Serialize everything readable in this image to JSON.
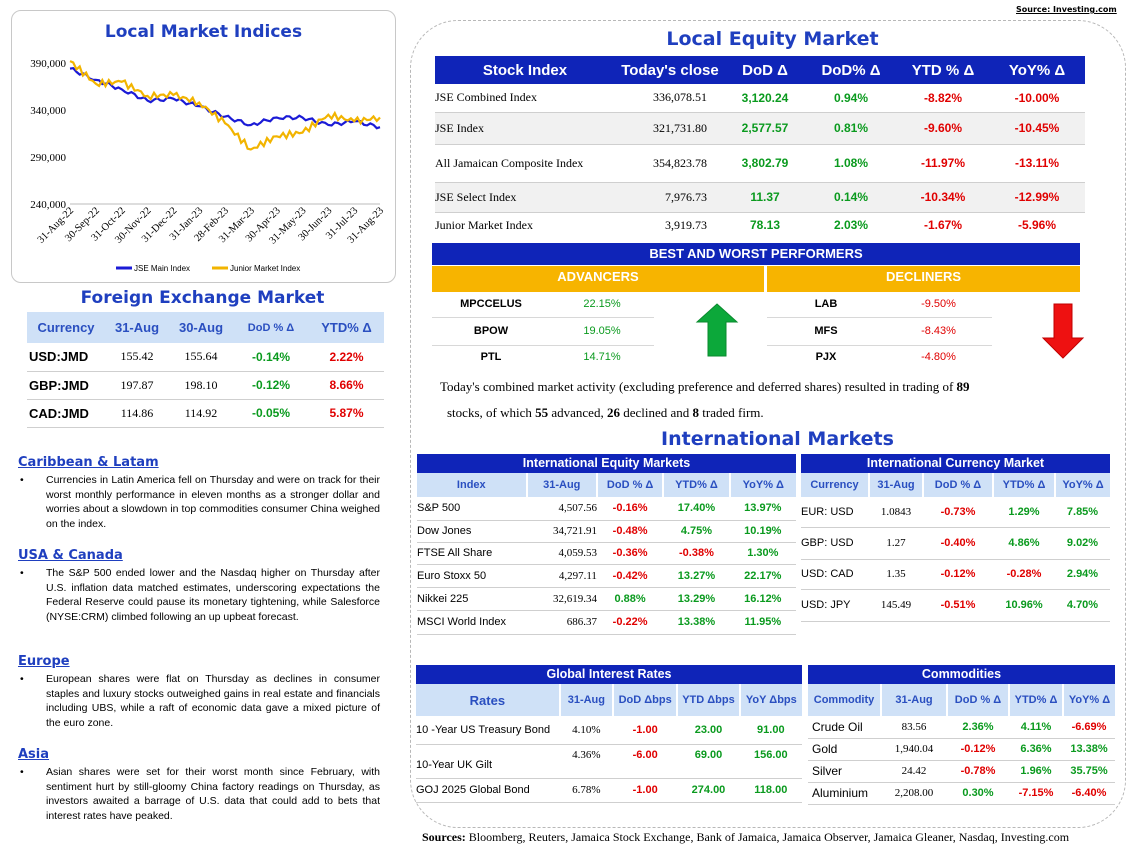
{
  "source_top": "Source: Investing.com",
  "sources_bottom_label": "Sources:",
  "sources_bottom_text": " Bloomberg, Reuters, Jamaica Stock Exchange, Bank of Jamaica, Jamaica Observer, Jamaica Gleaner, Nasdaq, Investing.com",
  "chart_data": {
    "type": "line",
    "title": "Local Market Indices",
    "x": [
      "31-Aug-22",
      "30-Sep-22",
      "31-Oct-22",
      "30-Nov-22",
      "31-Dec-22",
      "31-Jan-23",
      "28-Feb-23",
      "31-Mar-23",
      "30-Apr-23",
      "31-May-23",
      "30-Jun-23",
      "31-Jul-23",
      "31-Aug-23"
    ],
    "ylim": [
      240000,
      390000
    ],
    "yticks": [
      "390,000",
      "340,000",
      "290,000",
      "240,000"
    ],
    "ytick_values": [
      390000,
      340000,
      290000,
      240000
    ],
    "series": [
      {
        "name": "JSE Main Index",
        "color": "#1b1bd6",
        "values": [
          384000,
          372000,
          362000,
          350000,
          352000,
          344000,
          333000,
          324000,
          332000,
          332000,
          324000,
          328000,
          321731
        ]
      },
      {
        "name": "Junior Market Index",
        "color": "#f2b400",
        "values": [
          392000,
          368000,
          370000,
          355000,
          356000,
          348000,
          326000,
          298000,
          312000,
          316000,
          335000,
          328000,
          332000
        ]
      }
    ]
  },
  "fx": {
    "title": "Foreign Exchange Market",
    "headers": [
      "Currency",
      "31-Aug",
      "30-Aug",
      "DoD % Δ",
      "YTD% Δ"
    ],
    "rows": [
      {
        "cur": "USD:JMD",
        "a": "155.42",
        "b": "155.64",
        "dod": "-0.14%",
        "ytd": "2.22%"
      },
      {
        "cur": "GBP:JMD",
        "a": "197.87",
        "b": "198.10",
        "dod": "-0.12%",
        "ytd": "8.66%"
      },
      {
        "cur": "CAD:JMD",
        "a": "114.86",
        "b": "114.92",
        "dod": "-0.05%",
        "ytd": "5.87%"
      }
    ]
  },
  "news": [
    {
      "head": "Caribbean & Latam",
      "text": "Currencies in Latin America fell on Thursday and were on track for their worst monthly performance in eleven months as a stronger dollar and worries about a slowdown in top commodities consumer China weighed on the index."
    },
    {
      "head": "USA & Canada",
      "text": "The S&P 500 ended lower and the Nasdaq higher on Thursday after U.S. inflation data matched estimates, underscoring expectations the Federal Reserve could pause its monetary tightening, while Salesforce (NYSE:CRM) climbed following an up upbeat forecast."
    },
    {
      "head": "Europe",
      "text": "European shares were flat on Thursday as declines in consumer staples and luxury stocks outweighed gains in real estate and financials including UBS, while a raft of economic data gave a mixed picture of the euro zone."
    },
    {
      "head": "Asia",
      "text": "Asian shares were set for their worst month since February, with sentiment hurt by still-gloomy China factory readings on Thursday, as investors awaited a barrage of U.S. data that could add to bets that interest rates have peaked."
    }
  ],
  "equity": {
    "title": "Local Equity Market",
    "headers": [
      "Stock Index",
      "Today's close",
      "DoD  Δ",
      "DoD% Δ",
      "YTD % Δ",
      "YoY% Δ"
    ],
    "rows": [
      {
        "name": "JSE Combined Index",
        "close": "336,078.51",
        "dod": "3,120.24",
        "dodp": "0.94%",
        "ytd": "-8.82%",
        "yoy": "-10.00%"
      },
      {
        "name": "JSE Index",
        "close": "321,731.80",
        "dod": "2,577.57",
        "dodp": "0.81%",
        "ytd": "-9.60%",
        "yoy": "-10.45%"
      },
      {
        "name": "All Jamaican Composite Index",
        "close": "354,823.78",
        "dod": "3,802.79",
        "dodp": "1.08%",
        "ytd": "-11.97%",
        "yoy": "-13.11%"
      },
      {
        "name": "JSE Select Index",
        "close": "7,976.73",
        "dod": "11.37",
        "dodp": "0.14%",
        "ytd": "-10.34%",
        "yoy": "-12.99%"
      },
      {
        "name": "Junior Market Index",
        "close": "3,919.73",
        "dod": "78.13",
        "dodp": "2.03%",
        "ytd": "-1.67%",
        "yoy": "-5.96%"
      }
    ]
  },
  "performers": {
    "title": "BEST AND WORST PERFORMERS",
    "adv_label": "ADVANCERS",
    "dec_label": "DECLINERS",
    "advancers": [
      {
        "sym": "MPCCELUS",
        "val": "22.15%"
      },
      {
        "sym": "BPOW",
        "val": "19.05%"
      },
      {
        "sym": "PTL",
        "val": "14.71%"
      }
    ],
    "decliners": [
      {
        "sym": "LAB",
        "val": "-9.50%"
      },
      {
        "sym": "MFS",
        "val": "-8.43%"
      },
      {
        "sym": "PJX",
        "val": "-4.80%"
      }
    ]
  },
  "summary": {
    "p1": "Today's combined market activity (excluding preference and deferred shares) resulted in trading of ",
    "n_total": "89",
    "p2": "stocks, of which ",
    "n_adv": "55",
    "p3": " advanced, ",
    "n_dec": "26",
    "p4": " declined and ",
    "n_flat": "8",
    "p5": " traded firm."
  },
  "intl": {
    "title": "International Markets",
    "eq_title": "International Equity Markets",
    "eq_headers": [
      "Index",
      "31-Aug",
      "DoD % Δ",
      "YTD% Δ",
      "YoY% Δ"
    ],
    "eq_rows": [
      {
        "name": "S&P 500",
        "v": "4,507.56",
        "dod": "-0.16%",
        "ytd": "17.40%",
        "yoy": "13.97%"
      },
      {
        "name": "Dow Jones",
        "v": "34,721.91",
        "dod": "-0.48%",
        "ytd": "4.75%",
        "yoy": "10.19%"
      },
      {
        "name": "FTSE All Share",
        "v": "4,059.53",
        "dod": "-0.36%",
        "ytd": "-0.38%",
        "yoy": "1.30%"
      },
      {
        "name": "Euro Stoxx 50",
        "v": "4,297.11",
        "dod": "-0.42%",
        "ytd": "13.27%",
        "yoy": "22.17%"
      },
      {
        "name": "Nikkei 225",
        "v": "32,619.34",
        "dod": "0.88%",
        "ytd": "13.29%",
        "yoy": "16.12%"
      },
      {
        "name": "MSCI World Index",
        "v": "686.37",
        "dod": "-0.22%",
        "ytd": "13.38%",
        "yoy": "11.95%"
      }
    ],
    "cur_title": "International Currency Market",
    "cur_headers": [
      "Currency",
      "31-Aug",
      "DoD % Δ",
      "YTD% Δ",
      "YoY% Δ"
    ],
    "cur_rows": [
      {
        "name": "EUR: USD",
        "v": "1.0843",
        "dod": "-0.73%",
        "ytd": "1.29%",
        "yoy": "7.85%"
      },
      {
        "name": "GBP: USD",
        "v": "1.27",
        "dod": "-0.40%",
        "ytd": "4.86%",
        "yoy": "9.02%"
      },
      {
        "name": "USD: CAD",
        "v": "1.35",
        "dod": "-0.12%",
        "ytd": "-0.28%",
        "yoy": "2.94%"
      },
      {
        "name": "USD: JPY",
        "v": "145.49",
        "dod": "-0.51%",
        "ytd": "10.96%",
        "yoy": "4.70%"
      }
    ],
    "rates_title": "Global Interest Rates",
    "rates_headers": [
      "Rates",
      "31-Aug",
      "DoD Δbps",
      "YTD Δbps",
      "YoY Δbps"
    ],
    "rates_rows": [
      {
        "name": "10 -Year US Treasury Bond",
        "v": "4.10%",
        "dod": "-1.00",
        "ytd": "23.00",
        "yoy": "91.00"
      },
      {
        "name": "10-Year UK Gilt",
        "v": "4.36%",
        "dod": "-6.00",
        "ytd": "69.00",
        "yoy": "156.00"
      },
      {
        "name": "GOJ 2025 Global Bond",
        "v": "6.78%",
        "dod": "-1.00",
        "ytd": "274.00",
        "yoy": "118.00"
      }
    ],
    "com_title": "Commodities",
    "com_headers": [
      "Commodity",
      "31-Aug",
      "DoD % Δ",
      "YTD% Δ",
      "YoY% Δ"
    ],
    "com_rows": [
      {
        "name": "Crude Oil",
        "v": "83.56",
        "dod": "2.36%",
        "ytd": "4.11%",
        "yoy": "-6.69%"
      },
      {
        "name": "Gold",
        "v": "1,940.04",
        "dod": "-0.12%",
        "ytd": "6.36%",
        "yoy": "13.38%"
      },
      {
        "name": "Silver",
        "v": "24.42",
        "dod": "-0.78%",
        "ytd": "1.96%",
        "yoy": "35.75%"
      },
      {
        "name": "Aluminium",
        "v": "2,208.00",
        "dod": "0.30%",
        "ytd": "-7.15%",
        "yoy": "-6.40%"
      }
    ]
  }
}
